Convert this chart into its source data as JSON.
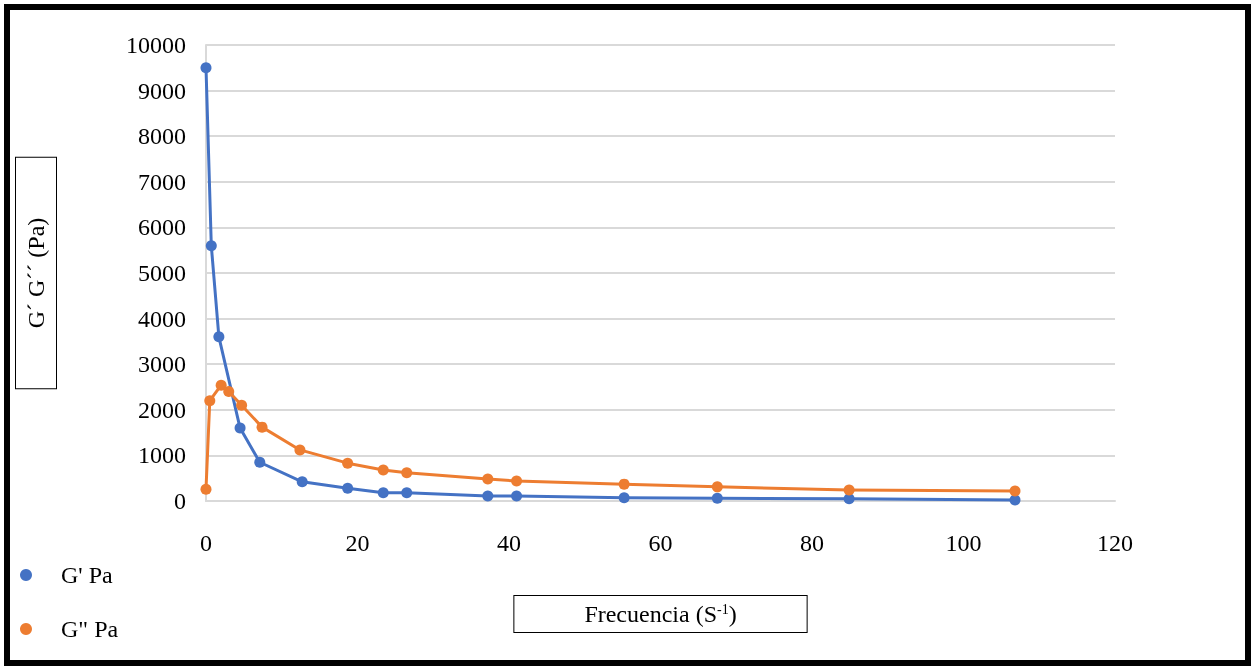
{
  "chart_data": {
    "type": "line",
    "xlabel": "Frecuencia (S$^{-1}$)",
    "ylabel": "G´ G´´ (Pa)",
    "xlim": [
      0,
      120
    ],
    "xticks": [
      0,
      20,
      40,
      60,
      80,
      100,
      120
    ],
    "ylim": [
      0,
      10000
    ],
    "yticks": [
      0,
      1000,
      2000,
      3000,
      4000,
      5000,
      6000,
      7000,
      8000,
      9000,
      10000
    ],
    "grid": "y",
    "legend": "bottom left",
    "marker": "circle",
    "line_style": "solid",
    "series": [
      {
        "name": "G' Pa",
        "color": "#4472c4",
        "x": [
          0,
          0.7,
          1.7,
          4.5,
          7.1,
          12.7,
          18.7,
          23.4,
          26.5,
          37.2,
          41,
          55.2,
          67.5,
          84.9,
          106.8
        ],
        "values": [
          9500,
          5600,
          3600,
          1600,
          850,
          420,
          280,
          180,
          180,
          110,
          110,
          70,
          60,
          50,
          20
        ]
      },
      {
        "name": "G\" Pa",
        "color": "#ed7d31",
        "x": [
          0,
          0.5,
          2,
          3,
          4.7,
          7.4,
          12.4,
          18.7,
          23.4,
          26.5,
          37.2,
          41,
          55.2,
          67.5,
          84.9,
          106.8
        ],
        "values": [
          260,
          2200,
          2540,
          2400,
          2100,
          1620,
          1120,
          830,
          680,
          620,
          480,
          440,
          370,
          310,
          240,
          220
        ]
      }
    ]
  }
}
